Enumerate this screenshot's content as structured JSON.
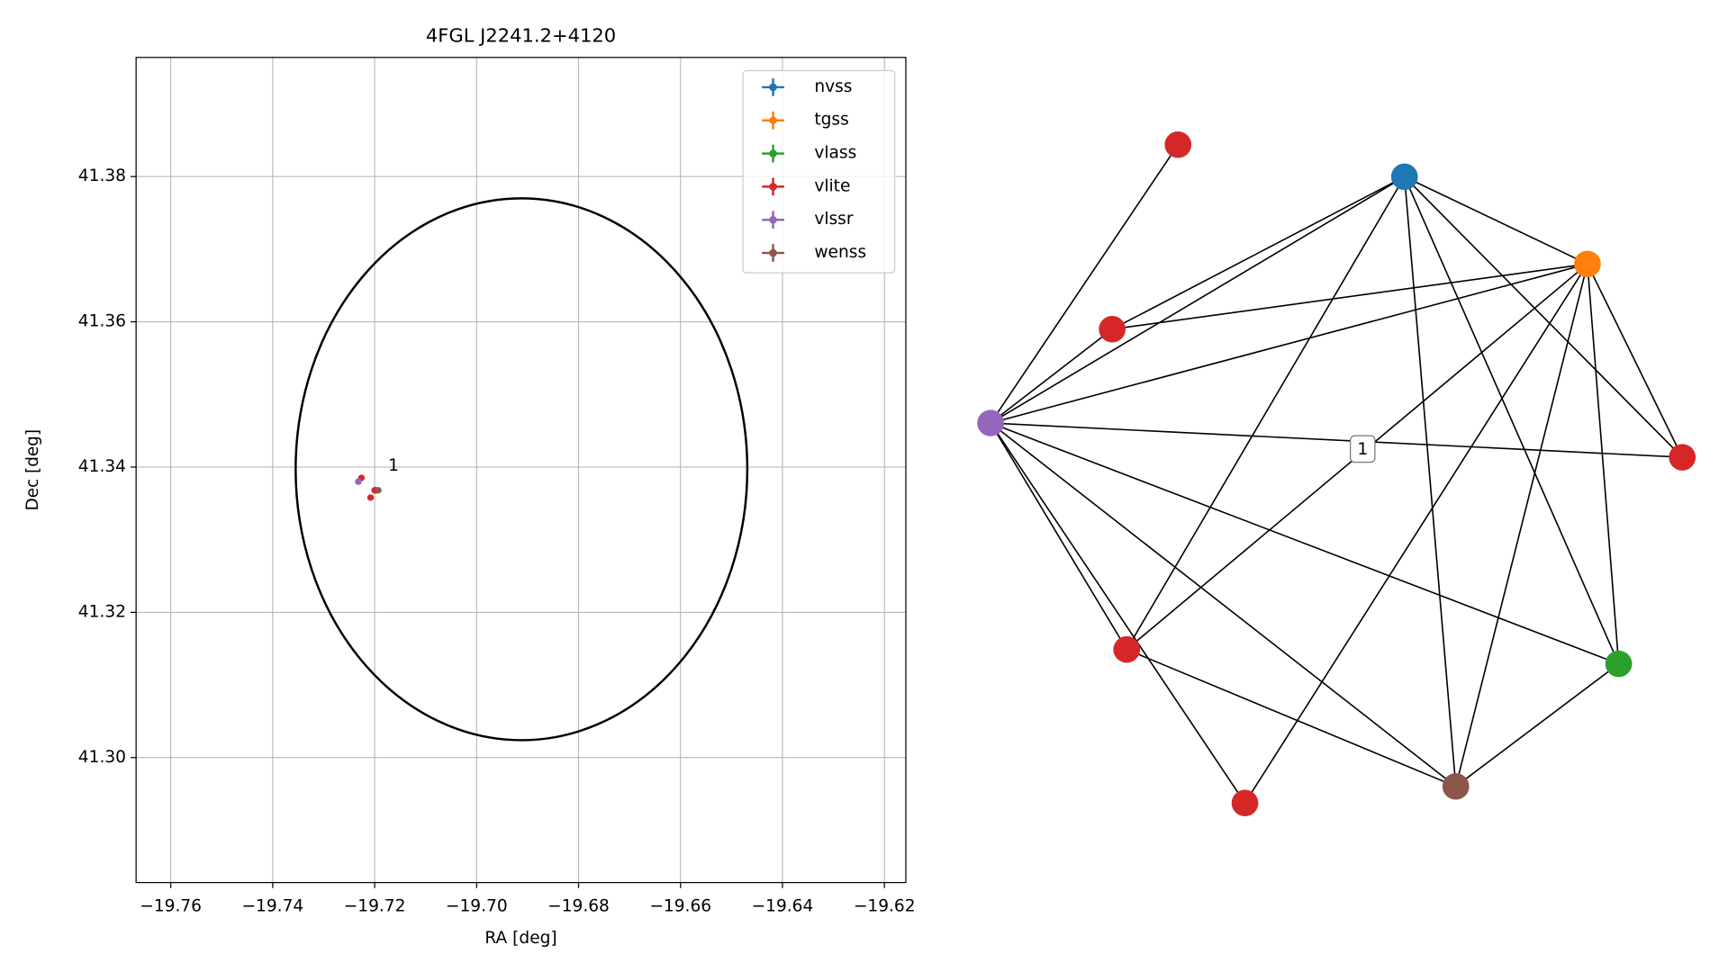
{
  "chart_data": [
    {
      "type": "scatter",
      "title": "4FGL J2241.2+4120",
      "xlabel": "RA [deg]",
      "ylabel": "Dec [deg]",
      "xlim": [
        -19.7668,
        -19.6158
      ],
      "ylim": [
        41.2828,
        41.3964
      ],
      "xticks": [
        {
          "value": -19.76,
          "label": "−19.76"
        },
        {
          "value": -19.74,
          "label": "−19.74"
        },
        {
          "value": -19.72,
          "label": "−19.72"
        },
        {
          "value": -19.7,
          "label": "−19.70"
        },
        {
          "value": -19.68,
          "label": "−19.68"
        },
        {
          "value": -19.66,
          "label": "−19.66"
        },
        {
          "value": -19.64,
          "label": "−19.64"
        },
        {
          "value": -19.62,
          "label": "−19.62"
        }
      ],
      "yticks": [
        {
          "value": 41.3,
          "label": "41.30"
        },
        41.32,
        41.34,
        41.36,
        41.38
      ],
      "grid": true,
      "legend": "upper right",
      "ellipse": {
        "center": [
          -19.6912,
          41.3397
        ],
        "width": 0.0886,
        "height": 0.0746,
        "color": "#000000"
      },
      "series": [
        {
          "name": "nvss",
          "color": "#1f77b4",
          "x": [
            -19.7199
          ],
          "y": [
            41.3368
          ]
        },
        {
          "name": "tgss",
          "color": "#ff7f0e",
          "x": [
            -19.7199
          ],
          "y": [
            41.3368
          ]
        },
        {
          "name": "vlass",
          "color": "#2ca02c",
          "x": [
            -19.7199
          ],
          "y": [
            41.3368
          ]
        },
        {
          "name": "vlite",
          "color": "#d62728",
          "x": [
            -19.7226,
            -19.7197,
            -19.7208,
            -19.72
          ],
          "y": [
            41.3385,
            41.3368,
            41.3358,
            41.3368
          ]
        },
        {
          "name": "vlssr",
          "color": "#9467bd",
          "x": [
            -19.7232
          ],
          "y": [
            41.338
          ]
        },
        {
          "name": "wenss",
          "color": "#8c564b",
          "x": [
            -19.7193
          ],
          "y": [
            41.3368
          ]
        }
      ],
      "annotations": [
        {
          "text": "1",
          "x": -19.718,
          "y": 41.3389
        }
      ]
    },
    {
      "type": "network",
      "nodes": [
        {
          "color": "#1f77b4"
        },
        {
          "color": "#ff7f0e"
        },
        {
          "color": "#2ca02c"
        },
        {
          "color": "#8c564b"
        },
        {
          "color": "#9467bd"
        },
        {
          "color": "#d62728"
        },
        {
          "color": "#d62728"
        },
        {
          "color": "#d62728"
        },
        {
          "color": "#d62728"
        },
        {
          "color": "#d62728"
        }
      ],
      "edges": [
        [
          4,
          5
        ],
        [
          4,
          6
        ],
        [
          4,
          0
        ],
        [
          4,
          1
        ],
        [
          4,
          7
        ],
        [
          4,
          8
        ],
        [
          4,
          9
        ],
        [
          4,
          3
        ],
        [
          4,
          2
        ],
        [
          6,
          0
        ],
        [
          6,
          1
        ],
        [
          0,
          8
        ],
        [
          0,
          3
        ],
        [
          0,
          2
        ],
        [
          0,
          7
        ],
        [
          0,
          1
        ],
        [
          1,
          7
        ],
        [
          1,
          2
        ],
        [
          1,
          3
        ],
        [
          1,
          9
        ],
        [
          1,
          8
        ],
        [
          8,
          3
        ],
        [
          3,
          2
        ]
      ],
      "edge_labels": [
        {
          "edge": 20,
          "label": "1"
        }
      ]
    }
  ]
}
